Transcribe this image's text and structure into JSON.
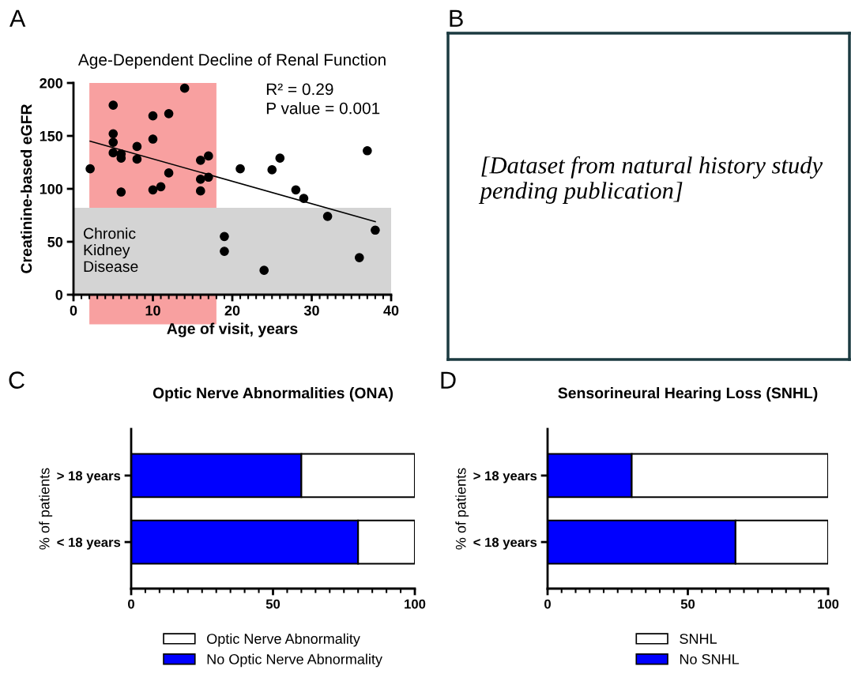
{
  "chart_data": [
    {
      "type": "scatter",
      "title": "Age-Dependent Decline of Renal Function",
      "xlabel": "Age of visit, years",
      "ylabel": "Creatinine-based eGFR",
      "annotations": [
        "A",
        "R² = 0.29",
        "P value = 0.001"
      ],
      "xlim": [
        0,
        40
      ],
      "xticks": [
        0,
        10,
        20,
        30,
        40
      ],
      "ylim": [
        0,
        200
      ],
      "yticks": [
        0,
        50,
        100,
        150,
        200
      ],
      "marker": "circle",
      "grid": false,
      "legend": false,
      "series": [
        {
          "color": "#000000",
          "x": [
            2.1,
            5,
            5,
            5,
            5,
            6,
            6,
            6,
            8,
            8,
            10,
            10,
            10,
            11,
            12,
            12,
            14,
            16,
            16,
            16,
            17,
            17,
            19,
            19,
            21,
            24,
            25,
            26,
            28,
            29,
            32,
            36,
            37,
            38
          ],
          "values": [
            119,
            179,
            152,
            144,
            134,
            133,
            129,
            97,
            140,
            128,
            169,
            147,
            99,
            102,
            171,
            115,
            195,
            127,
            109,
            98,
            131,
            111,
            55,
            41,
            119,
            23,
            118,
            129,
            99,
            91,
            74,
            35,
            136,
            61
          ]
        },
        {
          "type": "line",
          "color": "#000000",
          "marker": "none",
          "x": [
            2.1,
            38
          ],
          "values": [
            145,
            69
          ]
        }
      ],
      "bands": [
        {
          "axis": "x",
          "from": 2,
          "to": 18,
          "color": "#f8a0a0",
          "label": null
        },
        {
          "axis": "y",
          "from": 0,
          "to": 82,
          "color": "#d4d4d4",
          "label": "Chronic Kidney Disease"
        }
      ]
    },
    {
      "type": "other",
      "annotations": [
        "B",
        "[Dataset from natural history study pending publication]"
      ]
    },
    {
      "type": "bar",
      "orientation": "horizontal",
      "stacked": true,
      "title": "Optic Nerve Abnormalities (ONA)",
      "ylabel": "% of patients",
      "annotations": [
        "C"
      ],
      "categories": [
        "> 18 years",
        "< 18 years"
      ],
      "xlim": [
        0,
        100
      ],
      "xticks": [
        0,
        50,
        100
      ],
      "legend": "bottom",
      "grid": false,
      "series": [
        {
          "name": "No Optic Nerve Abnormality",
          "color": "#0000ff",
          "values": [
            60,
            80
          ]
        },
        {
          "name": "Optic Nerve Abnormality",
          "color": "#ffffff",
          "values": [
            40,
            20
          ]
        }
      ]
    },
    {
      "type": "bar",
      "orientation": "horizontal",
      "stacked": true,
      "title": "Sensorineural Hearing Loss (SNHL)",
      "ylabel": "% of patients",
      "annotations": [
        "D"
      ],
      "categories": [
        "> 18 years",
        "< 18 years"
      ],
      "xlim": [
        0,
        100
      ],
      "xticks": [
        0,
        50,
        100
      ],
      "legend": "bottom",
      "grid": false,
      "series": [
        {
          "name": "No SNHL",
          "color": "#0000ff",
          "values": [
            30,
            67
          ]
        },
        {
          "name": "SNHL",
          "color": "#ffffff",
          "values": [
            70,
            33
          ]
        }
      ]
    }
  ]
}
